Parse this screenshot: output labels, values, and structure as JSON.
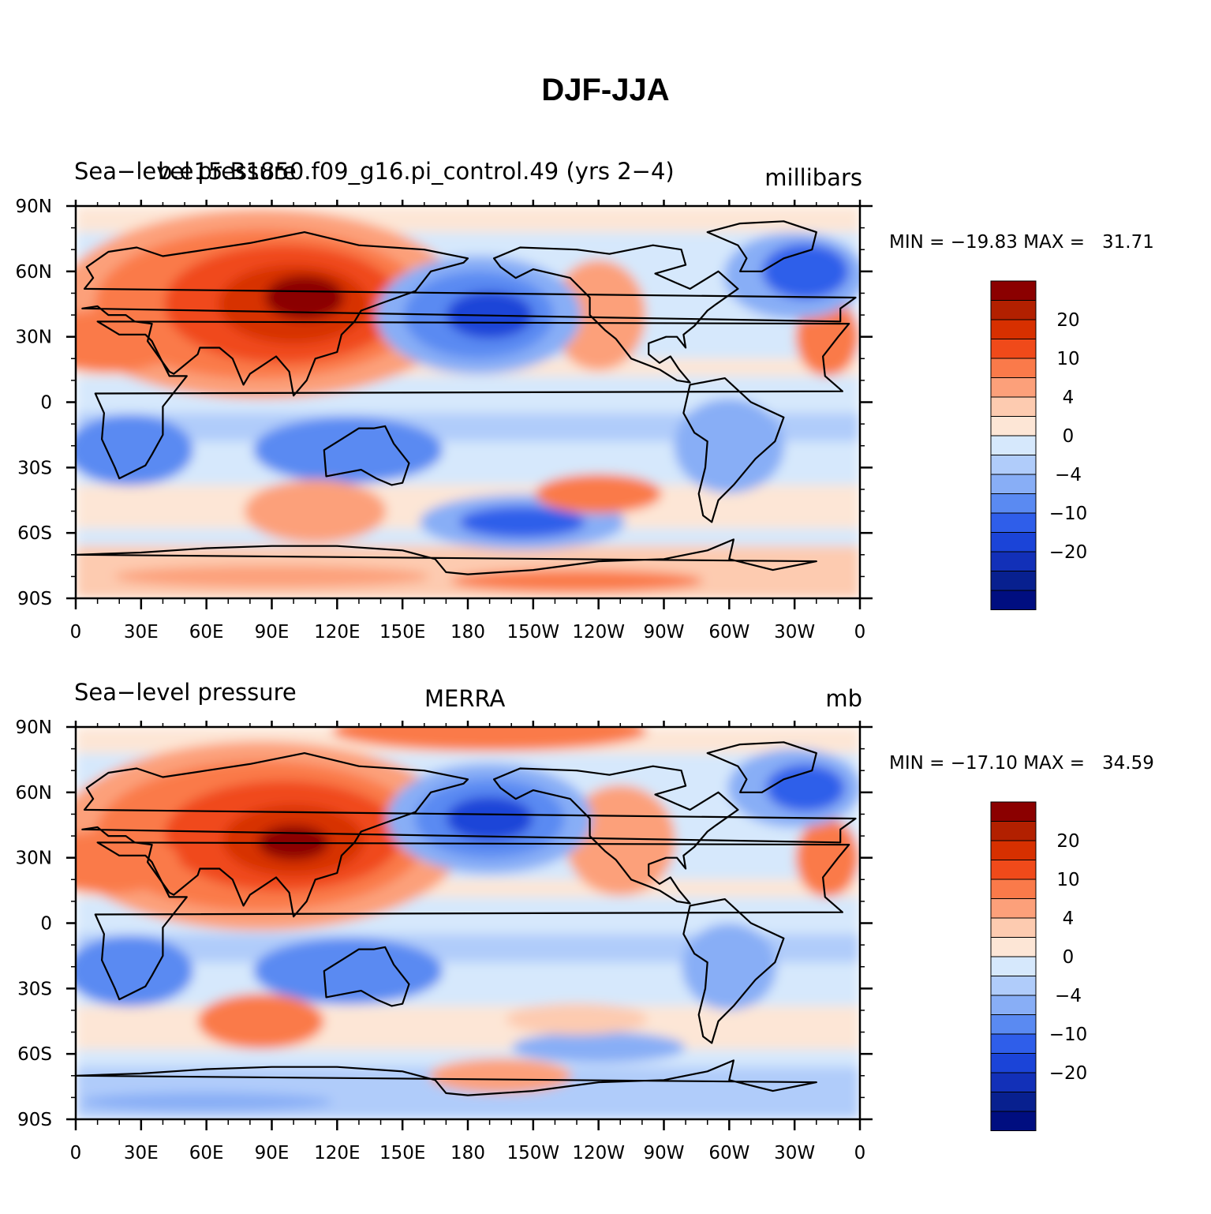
{
  "main_title": "DJF-JJA",
  "panels": [
    {
      "left_string": "Sea−level pressure",
      "center_string": "b.e15.B1850.f09_g16.pi_control.49 (yrs 2−4)",
      "right_string": "millibars",
      "min_max": "MIN = −19.83 MAX =   31.71"
    },
    {
      "left_string": "Sea−level pressure",
      "center_string": "MERRA",
      "right_string": "mb",
      "min_max": "MIN = −17.10 MAX =   34.59"
    }
  ],
  "axes": {
    "lat_labels": [
      "90N",
      "60N",
      "30N",
      "0",
      "30S",
      "60S",
      "90S"
    ],
    "lon_labels": [
      "0",
      "30E",
      "60E",
      "90E",
      "120E",
      "150E",
      "180",
      "150W",
      "120W",
      "90W",
      "60W",
      "30W",
      "0"
    ]
  },
  "colorbar": {
    "labels": [
      "20",
      "10",
      "4",
      "0",
      "−4",
      "−10",
      "−20"
    ],
    "colors": [
      "#8b0000",
      "#b22000",
      "#d73000",
      "#f04a1a",
      "#fa7a4a",
      "#fca07a",
      "#fdcbb0",
      "#fde6d6",
      "#d6e8fc",
      "#b0ccfa",
      "#88aef6",
      "#5a8af2",
      "#2f5eea",
      "#1b44d8",
      "#1230b8",
      "#08208f",
      "#000e80"
    ]
  }
}
